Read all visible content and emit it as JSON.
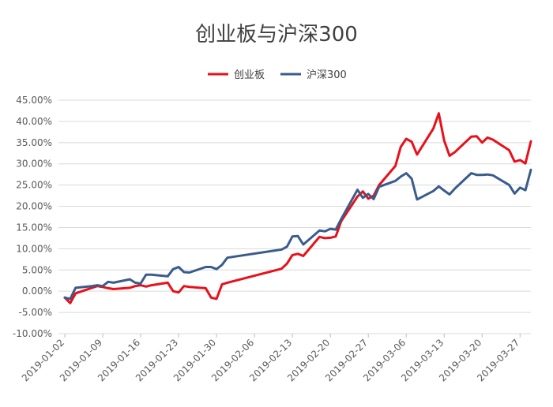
{
  "chart_data": {
    "type": "line",
    "title": "创业板与沪深300",
    "legend_position": "top-center",
    "grid": "horizontal",
    "y_tick_labels": [
      "45.00%",
      "40.00%",
      "35.00%",
      "30.00%",
      "25.00%",
      "20.00%",
      "15.00%",
      "10.00%",
      "5.00%",
      "0.00%",
      "-5.00%",
      "-10.00%"
    ],
    "x_tick_labels": [
      "2019-01-02",
      "2019-01-09",
      "2019-01-16",
      "2019-01-23",
      "2019-01-30",
      "2019-02-06",
      "2019-02-13",
      "2019-02-20",
      "2019-02-27",
      "2019-03-06",
      "2019-03-13",
      "2019-03-20",
      "2019-03-27"
    ],
    "ylim": [
      -10,
      45
    ],
    "xlim": [
      "2019-01-02",
      "2019-03-29"
    ],
    "series": [
      {
        "name": "创业板",
        "color": "#e8101a",
        "points": [
          [
            "2019-01-02",
            -1.5
          ],
          [
            "2019-01-03",
            -2.8
          ],
          [
            "2019-01-04",
            -0.5
          ],
          [
            "2019-01-07",
            0.8
          ],
          [
            "2019-01-08",
            1.2
          ],
          [
            "2019-01-09",
            1.0
          ],
          [
            "2019-01-10",
            0.7
          ],
          [
            "2019-01-11",
            0.5
          ],
          [
            "2019-01-14",
            0.8
          ],
          [
            "2019-01-15",
            1.2
          ],
          [
            "2019-01-16",
            1.4
          ],
          [
            "2019-01-17",
            1.1
          ],
          [
            "2019-01-18",
            1.4
          ],
          [
            "2019-01-21",
            2.0
          ],
          [
            "2019-01-22",
            0.0
          ],
          [
            "2019-01-23",
            -0.3
          ],
          [
            "2019-01-24",
            1.2
          ],
          [
            "2019-01-25",
            1.0
          ],
          [
            "2019-01-28",
            0.7
          ],
          [
            "2019-01-29",
            -1.5
          ],
          [
            "2019-01-30",
            -1.8
          ],
          [
            "2019-01-31",
            1.6
          ],
          [
            "2019-02-01",
            2.0
          ],
          [
            "2019-02-11",
            5.3
          ],
          [
            "2019-02-12",
            6.5
          ],
          [
            "2019-02-13",
            8.5
          ],
          [
            "2019-02-14",
            8.8
          ],
          [
            "2019-02-15",
            8.3
          ],
          [
            "2019-02-18",
            12.8
          ],
          [
            "2019-02-19",
            12.5
          ],
          [
            "2019-02-20",
            12.6
          ],
          [
            "2019-02-21",
            12.9
          ],
          [
            "2019-02-22",
            16.5
          ],
          [
            "2019-02-25",
            22.3
          ],
          [
            "2019-02-26",
            23.5
          ],
          [
            "2019-02-27",
            21.8
          ],
          [
            "2019-02-28",
            22.5
          ],
          [
            "2019-03-01",
            25.0
          ],
          [
            "2019-03-04",
            29.5
          ],
          [
            "2019-03-05",
            34.0
          ],
          [
            "2019-03-06",
            35.9
          ],
          [
            "2019-03-07",
            35.2
          ],
          [
            "2019-03-08",
            32.2
          ],
          [
            "2019-03-11",
            38.3
          ],
          [
            "2019-03-12",
            41.9
          ],
          [
            "2019-03-13",
            35.5
          ],
          [
            "2019-03-14",
            31.9
          ],
          [
            "2019-03-15",
            32.8
          ],
          [
            "2019-03-18",
            36.4
          ],
          [
            "2019-03-19",
            36.5
          ],
          [
            "2019-03-20",
            35.0
          ],
          [
            "2019-03-21",
            36.2
          ],
          [
            "2019-03-22",
            35.7
          ],
          [
            "2019-03-25",
            33.2
          ],
          [
            "2019-03-26",
            30.5
          ],
          [
            "2019-03-27",
            30.9
          ],
          [
            "2019-03-28",
            30.1
          ],
          [
            "2019-03-29",
            35.3
          ]
        ]
      },
      {
        "name": "沪深300",
        "color": "#3a5c8c",
        "points": [
          [
            "2019-01-02",
            -1.5
          ],
          [
            "2019-01-03",
            -1.8
          ],
          [
            "2019-01-04",
            0.8
          ],
          [
            "2019-01-07",
            1.2
          ],
          [
            "2019-01-08",
            1.4
          ],
          [
            "2019-01-09",
            1.2
          ],
          [
            "2019-01-10",
            2.2
          ],
          [
            "2019-01-11",
            2.0
          ],
          [
            "2019-01-14",
            2.8
          ],
          [
            "2019-01-15",
            2.0
          ],
          [
            "2019-01-16",
            1.8
          ],
          [
            "2019-01-17",
            3.9
          ],
          [
            "2019-01-18",
            3.9
          ],
          [
            "2019-01-21",
            3.5
          ],
          [
            "2019-01-22",
            5.2
          ],
          [
            "2019-01-23",
            5.7
          ],
          [
            "2019-01-24",
            4.5
          ],
          [
            "2019-01-25",
            4.4
          ],
          [
            "2019-01-28",
            5.7
          ],
          [
            "2019-01-29",
            5.7
          ],
          [
            "2019-01-30",
            5.2
          ],
          [
            "2019-01-31",
            6.2
          ],
          [
            "2019-02-01",
            7.9
          ],
          [
            "2019-02-11",
            9.8
          ],
          [
            "2019-02-12",
            10.5
          ],
          [
            "2019-02-13",
            12.9
          ],
          [
            "2019-02-14",
            13.0
          ],
          [
            "2019-02-15",
            11.0
          ],
          [
            "2019-02-18",
            14.3
          ],
          [
            "2019-02-19",
            14.1
          ],
          [
            "2019-02-20",
            14.7
          ],
          [
            "2019-02-21",
            14.5
          ],
          [
            "2019-02-22",
            17.0
          ],
          [
            "2019-02-25",
            23.9
          ],
          [
            "2019-02-26",
            22.0
          ],
          [
            "2019-02-27",
            22.9
          ],
          [
            "2019-02-28",
            21.7
          ],
          [
            "2019-03-01",
            24.6
          ],
          [
            "2019-03-04",
            26.0
          ],
          [
            "2019-03-05",
            27.0
          ],
          [
            "2019-03-06",
            27.8
          ],
          [
            "2019-03-07",
            26.5
          ],
          [
            "2019-03-08",
            21.6
          ],
          [
            "2019-03-11",
            23.6
          ],
          [
            "2019-03-12",
            24.7
          ],
          [
            "2019-03-13",
            23.7
          ],
          [
            "2019-03-14",
            22.8
          ],
          [
            "2019-03-15",
            24.2
          ],
          [
            "2019-03-18",
            27.8
          ],
          [
            "2019-03-19",
            27.4
          ],
          [
            "2019-03-20",
            27.4
          ],
          [
            "2019-03-21",
            27.5
          ],
          [
            "2019-03-22",
            27.3
          ],
          [
            "2019-03-25",
            25.0
          ],
          [
            "2019-03-26",
            23.0
          ],
          [
            "2019-03-27",
            24.4
          ],
          [
            "2019-03-28",
            23.8
          ],
          [
            "2019-03-29",
            28.6
          ]
        ]
      }
    ]
  }
}
